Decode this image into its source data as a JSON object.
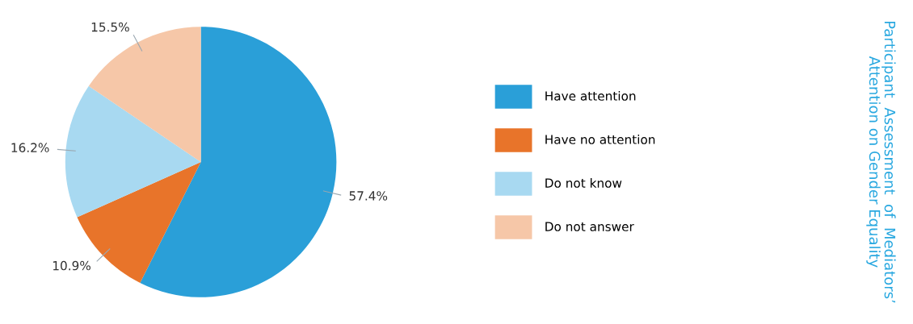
{
  "chart_data": {
    "type": "pie",
    "title": "Participant  Assessment  of  Mediators’\nAttention on Gender Equality",
    "categories": [
      "Have attention",
      "Have no attention",
      "Do not know",
      "Do not answer"
    ],
    "values": [
      57.4,
      10.9,
      16.2,
      15.5
    ],
    "value_labels": [
      "57.4%",
      "10.9%",
      "16.2%",
      "15.5%"
    ],
    "colors": [
      "#2a9fd8",
      "#e8742a",
      "#a8d9f1",
      "#f6c7a8"
    ],
    "legend": "right"
  }
}
